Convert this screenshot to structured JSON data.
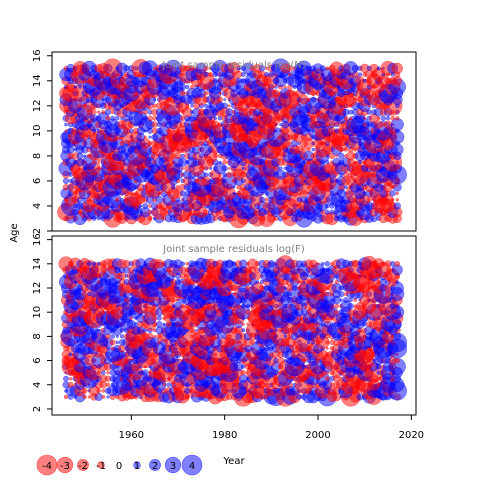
{
  "chart_data": [
    {
      "type": "scatter",
      "title": "Joint sample residuals log(N)",
      "ylabel": "Age",
      "xlim": [
        1943,
        2021
      ],
      "ylim": [
        2,
        16.3
      ],
      "x_ticks": [],
      "y_ticks": [
        2,
        4,
        6,
        8,
        10,
        12,
        14,
        16
      ],
      "ages": [
        3,
        3.5,
        4,
        4.5,
        5,
        5.5,
        6,
        6.5,
        7,
        7.5,
        8,
        8.5,
        9,
        9.5,
        10,
        10.5,
        11,
        11.5,
        12,
        12.5,
        13,
        13.5,
        14,
        14.5,
        15
      ],
      "years": [
        1946,
        2017
      ],
      "encoding": {
        "size": "absolute residual",
        "color": "sign (red = negative, blue = positive)"
      }
    },
    {
      "type": "scatter",
      "title": "Joint sample residuals log(F)",
      "xlabel": "Year",
      "ylabel": "Age",
      "xlim": [
        1943,
        2021
      ],
      "ylim": [
        1.5,
        16.3
      ],
      "x_ticks": [
        1960,
        1980,
        2000,
        2020
      ],
      "y_ticks": [
        2,
        4,
        6,
        8,
        10,
        12,
        14,
        16
      ],
      "ages": [
        3,
        3.5,
        4,
        4.5,
        5,
        5.5,
        6,
        6.5,
        7,
        7.5,
        8,
        8.5,
        9,
        9.5,
        10,
        10.5,
        11,
        11.5,
        12,
        12.5,
        13,
        13.5,
        14
      ],
      "years": [
        1946,
        2017
      ],
      "encoding": {
        "size": "absolute residual",
        "color": "sign (red = negative, blue = positive)"
      }
    }
  ],
  "shared": {
    "ylabel": "Age",
    "xlabel": "Year",
    "colors": {
      "negative": "#ff0000",
      "positive": "#0000ff",
      "title_text": "#808080",
      "axis": "#000000"
    }
  },
  "legend": {
    "items": [
      {
        "value": -4,
        "label": "-4"
      },
      {
        "value": -3,
        "label": "-3"
      },
      {
        "value": -2,
        "label": "-2"
      },
      {
        "value": -1,
        "label": "-1"
      },
      {
        "value": 0,
        "label": "0"
      },
      {
        "value": 1,
        "label": "1"
      },
      {
        "value": 2,
        "label": "2"
      },
      {
        "value": 3,
        "label": "3"
      },
      {
        "value": 4,
        "label": "4"
      }
    ],
    "title": "Year"
  }
}
